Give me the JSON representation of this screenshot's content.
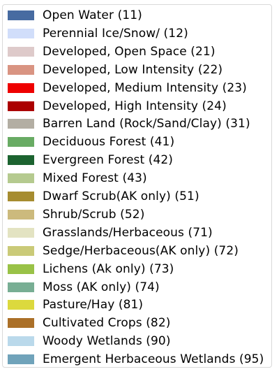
{
  "legend": {
    "items": [
      {
        "label": "Open Water (11)",
        "color": "#476ba1"
      },
      {
        "label": "Perennial Ice/Snow/ (12)",
        "color": "#d1defa"
      },
      {
        "label": "Developed, Open Space (21)",
        "color": "#decaca"
      },
      {
        "label": "Developed, Low Intensity (22)",
        "color": "#d99482"
      },
      {
        "label": "Developed, Medium Intensity (23)",
        "color": "#ee0000"
      },
      {
        "label": "Developed, High Intensity (24)",
        "color": "#ab0000"
      },
      {
        "label": "Barren Land (Rock/Sand/Clay) (31)",
        "color": "#b3aea3"
      },
      {
        "label": "Deciduous Forest (41)",
        "color": "#68ab63"
      },
      {
        "label": "Evergreen Forest (42)",
        "color": "#1c6330"
      },
      {
        "label": "Mixed Forest (43)",
        "color": "#b5ca8f"
      },
      {
        "label": "Dwarf Scrub(AK only) (51)",
        "color": "#a68c30"
      },
      {
        "label": "Shrub/Scrub (52)",
        "color": "#ccba7d"
      },
      {
        "label": "Grasslands/Herbaceous (71)",
        "color": "#e3e3c2"
      },
      {
        "label": "Sedge/Herbaceous(AK only) (72)",
        "color": "#caca78"
      },
      {
        "label": "Lichens (Ak only) (73)",
        "color": "#99c247"
      },
      {
        "label": "Moss (AK only) (74)",
        "color": "#78ae94"
      },
      {
        "label": "Pasture/Hay (81)",
        "color": "#dcd93d"
      },
      {
        "label": "Cultivated Crops (82)",
        "color": "#ab7028"
      },
      {
        "label": "Woody Wetlands (90)",
        "color": "#bad9eb"
      },
      {
        "label": "Emergent Herbaceous Wetlands (95)",
        "color": "#70a3ba"
      }
    ]
  }
}
